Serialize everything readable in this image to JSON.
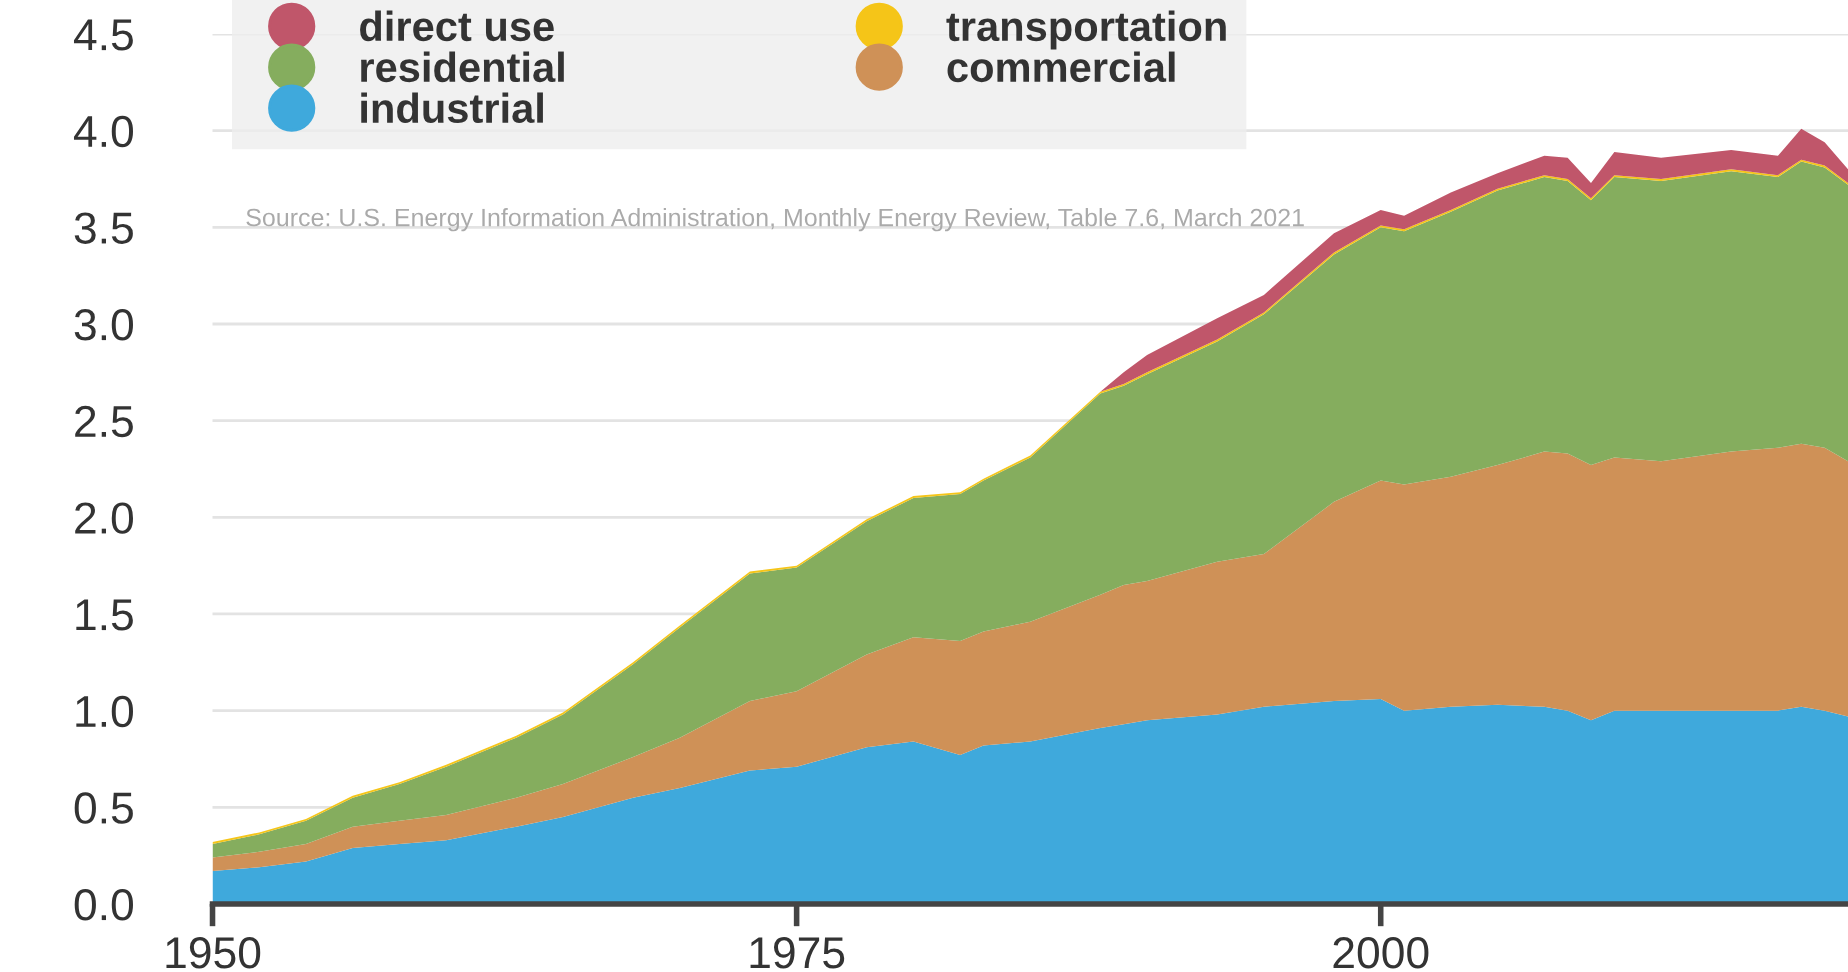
{
  "chart_data": {
    "type": "area",
    "stacked": true,
    "x": [
      1950,
      1952,
      1954,
      1956,
      1958,
      1960,
      1963,
      1965,
      1968,
      1970,
      1973,
      1975,
      1978,
      1980,
      1982,
      1983,
      1985,
      1988,
      1989,
      1990,
      1993,
      1995,
      1998,
      2000,
      2001,
      2003,
      2005,
      2007,
      2008,
      2009,
      2010,
      2012,
      2015,
      2017,
      2018,
      2019,
      2020
    ],
    "series": [
      {
        "name": "industrial",
        "color": "#3fa9dc",
        "values": [
          0.17,
          0.19,
          0.22,
          0.29,
          0.31,
          0.33,
          0.4,
          0.45,
          0.55,
          0.6,
          0.69,
          0.71,
          0.81,
          0.84,
          0.77,
          0.82,
          0.84,
          0.91,
          0.93,
          0.95,
          0.98,
          1.02,
          1.05,
          1.06,
          1.0,
          1.02,
          1.03,
          1.02,
          1.0,
          0.95,
          1.0,
          1.0,
          1.0,
          1.0,
          1.02,
          1.0,
          0.97
        ]
      },
      {
        "name": "commercial",
        "color": "#cf9157",
        "values": [
          0.07,
          0.08,
          0.09,
          0.11,
          0.12,
          0.13,
          0.15,
          0.17,
          0.21,
          0.26,
          0.36,
          0.39,
          0.48,
          0.54,
          0.59,
          0.59,
          0.62,
          0.69,
          0.72,
          0.72,
          0.79,
          0.79,
          1.03,
          1.13,
          1.17,
          1.19,
          1.24,
          1.32,
          1.33,
          1.32,
          1.31,
          1.29,
          1.34,
          1.36,
          1.36,
          1.36,
          1.32
        ]
      },
      {
        "name": "residential",
        "color": "#85ad5e",
        "values": [
          0.07,
          0.09,
          0.12,
          0.15,
          0.19,
          0.25,
          0.31,
          0.36,
          0.48,
          0.57,
          0.66,
          0.64,
          0.69,
          0.72,
          0.76,
          0.78,
          0.85,
          1.04,
          1.03,
          1.07,
          1.14,
          1.24,
          1.28,
          1.31,
          1.31,
          1.37,
          1.42,
          1.42,
          1.41,
          1.37,
          1.45,
          1.45,
          1.45,
          1.4,
          1.46,
          1.45,
          1.43
        ]
      },
      {
        "name": "transportation",
        "color": "#f5c518",
        "values": [
          0.01,
          0.01,
          0.01,
          0.01,
          0.01,
          0.01,
          0.01,
          0.01,
          0.01,
          0.01,
          0.01,
          0.01,
          0.01,
          0.01,
          0.01,
          0.01,
          0.01,
          0.01,
          0.01,
          0.01,
          0.01,
          0.01,
          0.01,
          0.01,
          0.01,
          0.01,
          0.01,
          0.01,
          0.01,
          0.01,
          0.01,
          0.01,
          0.01,
          0.01,
          0.01,
          0.01,
          0.01
        ]
      },
      {
        "name": "direct use",
        "color": "#c0566a",
        "values": [
          0,
          0,
          0,
          0,
          0,
          0,
          0,
          0,
          0,
          0,
          0,
          0,
          0,
          0,
          0,
          0,
          0,
          0,
          0.06,
          0.09,
          0.11,
          0.09,
          0.1,
          0.08,
          0.07,
          0.09,
          0.08,
          0.1,
          0.11,
          0.08,
          0.12,
          0.11,
          0.1,
          0.1,
          0.16,
          0.12,
          0.07
        ]
      }
    ],
    "xlim": [
      1950,
      2020
    ],
    "xticks": [
      1950,
      1975,
      2000
    ],
    "ylim": [
      0,
      4.5
    ],
    "yticks": [
      {
        "value": 0,
        "label": "0.0"
      },
      0.5,
      {
        "value": 1,
        "label": "1.0"
      },
      1.5,
      {
        "value": 2,
        "label": "2.0"
      },
      2.5,
      {
        "value": 3,
        "label": "3.0"
      },
      3.5,
      {
        "value": 4,
        "label": "4.0"
      },
      4.5
    ],
    "grid": "y",
    "legend": "top left",
    "annotations": [
      "Source: U.S. Energy Information Administration, Monthly Energy Review, Table 7.6, March 2021"
    ]
  }
}
